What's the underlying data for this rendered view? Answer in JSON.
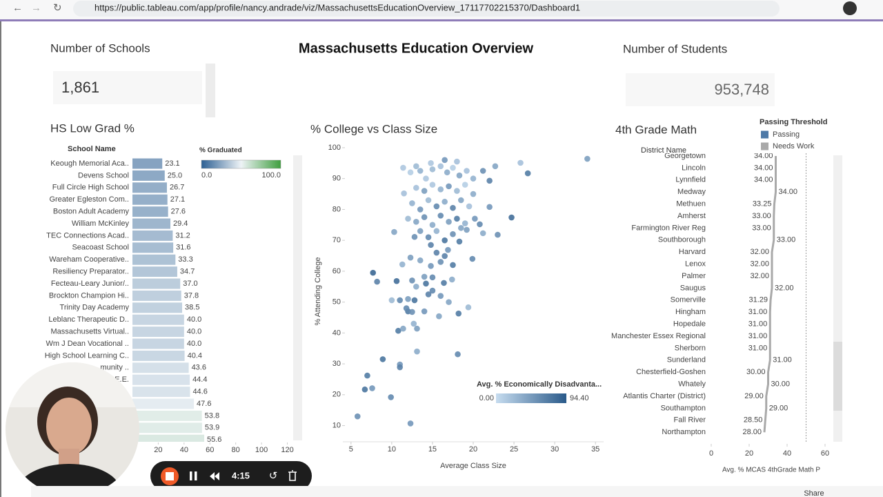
{
  "browser": {
    "url": "https://public.tableau.com/app/profile/nancy.andrade/viz/MassachusettsEducationOverview_17117702215370/Dashboard1"
  },
  "dashboard": {
    "title": "Massachusetts Education Overview",
    "kpis": [
      {
        "label": "Number of Schools",
        "value": "1,861"
      },
      {
        "label": "Number of Students",
        "value": "953,748"
      }
    ]
  },
  "chart_data": [
    {
      "type": "bar",
      "title": "HS Low Grad %",
      "category_header": "School Name",
      "categories": [
        "Keough Memorial Aca..",
        "Devens School",
        "Full Circle High School",
        "Greater Egleston Com..",
        "Boston Adult Academy",
        "William McKinley",
        "TEC Connections Acad..",
        "Seacoast School",
        "Wareham Cooperative..",
        "Resiliency Preparator..",
        "Fecteau-Leary Junior/..",
        "Brockton Champion Hi..",
        "Trinity Day Academy",
        "Leblanc Therapeutic D..",
        "Massachusetts Virtual..",
        "Wm J Dean Vocational ..",
        "High School Learning C..",
        "munity ..",
        "E.E.",
        null,
        null,
        null,
        null,
        null
      ],
      "values": [
        23.1,
        25.0,
        26.7,
        27.1,
        27.6,
        29.4,
        31.2,
        31.6,
        33.3,
        34.7,
        37.0,
        37.8,
        38.5,
        40.0,
        40.0,
        40.0,
        40.4,
        43.6,
        44.4,
        44.6,
        47.6,
        53.8,
        53.9,
        55.6
      ],
      "value_labels": [
        "23.1",
        "25.0",
        "26.7",
        "27.1",
        "27.6",
        "29.4",
        "31.2",
        "31.6",
        "33.3",
        "34.7",
        "37.0",
        "37.8",
        "38.5",
        "40.0",
        "40.0",
        "40.0",
        "40.4",
        "43.6",
        "44.4",
        "44.6",
        "47.6",
        "53.8",
        "53.9",
        "55.6"
      ],
      "xlim": [
        0,
        124
      ],
      "xticks": [
        0,
        20,
        40,
        60,
        80,
        100,
        120
      ],
      "color_legend": {
        "title": "% Graduated",
        "range": [
          {
            "value": 0,
            "label": "0.0"
          },
          {
            "value": 100,
            "label": "100.0"
          }
        ],
        "colors": [
          "#2c5f93",
          "#eef3f6",
          "#3f9e3f"
        ]
      }
    },
    {
      "type": "scatter",
      "title": "% College vs Class Size",
      "x_label": "Average Class Size",
      "y_label": "% Attending College",
      "x": [
        34.0,
        26.7,
        25.8,
        24.7,
        23.0,
        22.0,
        22.7,
        5.8,
        12.3,
        6.7,
        7.6,
        7.0,
        9.9,
        8.9,
        11.0,
        11.0,
        13.1,
        18.1,
        7.7,
        8.2,
        10.0,
        11.0,
        10.8,
        11.4,
        12.0,
        12.5,
        12.7,
        13.1,
        15.8,
        18.2,
        19.4,
        12.8,
        10.6,
        12.5,
        14.0,
        15.0,
        16.4,
        17.4,
        14.8,
        13.5,
        11.3,
        12.3,
        16.5,
        19.9,
        10.3,
        12.8,
        14.8,
        16.9,
        18.3,
        20.8,
        21.2,
        22.0,
        19.2,
        11.5,
        11.4,
        12.3,
        13.5,
        14.2,
        15.0,
        16.0,
        16.8,
        17.5,
        18.3,
        19.2,
        20.0,
        13.0,
        14.0,
        15.0,
        16.0,
        17.0,
        18.0,
        19.0,
        20.0,
        12.5,
        13.5,
        14.5,
        15.5,
        16.5,
        17.5,
        18.5,
        19.5,
        12.0,
        13.0,
        14.0,
        15.0,
        16.0,
        17.0,
        18.0,
        19.0,
        20.2,
        13.5,
        14.5,
        15.5,
        16.5,
        17.5,
        18.5,
        15.5,
        16.0,
        17.5,
        15.0,
        14.2,
        16.0,
        17.0,
        14.5,
        13.0,
        12.0,
        11.8,
        14.0,
        16.5,
        18.0,
        14.8,
        13.0,
        21.2
      ],
      "y": [
        96.4,
        91.7,
        95.1,
        77.4,
        71.8,
        89.3,
        94,
        13,
        10.7,
        21.7,
        22.1,
        26.2,
        19.2,
        31.5,
        29.8,
        28.9,
        34,
        33.1,
        59.5,
        56.6,
        50.6,
        50.6,
        40.7,
        41.4,
        47,
        46.8,
        43,
        41.4,
        45.4,
        46.3,
        48.3,
        50.6,
        56.8,
        57,
        58.2,
        53.7,
        56.2,
        57.3,
        61.7,
        63.5,
        62.2,
        64.4,
        64.9,
        64,
        72.7,
        71.1,
        68.5,
        66.9,
        69.6,
        75.2,
        72.3,
        80.8,
        73.4,
        85.2,
        93.5,
        92,
        92.5,
        90,
        93,
        94,
        92,
        93.5,
        91,
        92.5,
        90,
        87,
        86,
        88,
        86.5,
        87.5,
        86,
        88,
        85,
        82,
        80,
        83,
        81,
        82.5,
        80.5,
        83,
        81,
        77,
        76,
        77.5,
        75,
        78,
        76,
        77,
        75.5,
        77,
        73,
        71,
        73,
        70,
        72,
        74,
        66,
        63,
        62,
        58,
        56,
        52,
        50,
        52.5,
        55,
        51,
        48,
        47,
        96,
        95.5,
        95,
        94,
        92.5
      ],
      "color_values": [
        45,
        70,
        20,
        80,
        55,
        65,
        40,
        55,
        50,
        75,
        50,
        70,
        60,
        75,
        50,
        65,
        35,
        60,
        85,
        65,
        25,
        60,
        70,
        40,
        70,
        55,
        30,
        45,
        40,
        70,
        25,
        75,
        80,
        55,
        45,
        60,
        70,
        35,
        50,
        40,
        30,
        45,
        65,
        60,
        40,
        55,
        65,
        50,
        70,
        60,
        35,
        50,
        45,
        20,
        15,
        10,
        30,
        15,
        25,
        20,
        35,
        10,
        40,
        20,
        30,
        20,
        45,
        15,
        30,
        50,
        25,
        10,
        35,
        30,
        50,
        25,
        60,
        35,
        65,
        40,
        20,
        25,
        40,
        55,
        35,
        60,
        45,
        70,
        30,
        50,
        45,
        60,
        30,
        75,
        55,
        40,
        65,
        55,
        70,
        60,
        75,
        50,
        40,
        65,
        35,
        45,
        60,
        50,
        50,
        20,
        15,
        25,
        55
      ],
      "xlim": [
        4,
        36
      ],
      "ylim": [
        7,
        102
      ],
      "xticks": [
        5,
        10,
        15,
        20,
        25,
        30,
        35
      ],
      "yticks": [
        10,
        20,
        30,
        40,
        50,
        60,
        70,
        80,
        90,
        100
      ],
      "color_legend": {
        "title": "Avg. % Economically Disadvanta...",
        "range": [
          {
            "value": 0,
            "label": "0.00"
          },
          {
            "value": 94.4,
            "label": "94.40"
          }
        ],
        "colors": [
          "#c6dcef",
          "#2a5a8a"
        ]
      }
    },
    {
      "type": "line",
      "title": "4th Grade Math",
      "category_header": "District Name",
      "x_label": "Avg. % MCAS 4thGrade Math P",
      "categories": [
        "Georgetown",
        "Lincoln",
        "Lynnfield",
        "Medway",
        "Methuen",
        "Amherst",
        "Farmington River Reg",
        "Southborough",
        "Harvard",
        "Lenox",
        "Palmer",
        "Saugus",
        "Somerville",
        "Hingham",
        "Hopedale",
        "Manchester Essex Regional",
        "Sherborn",
        "Sunderland",
        "Chesterfield-Goshen",
        "Whately",
        "Atlantis Charter (District)",
        "Southampton",
        "Fall River",
        "Northampton"
      ],
      "values": [
        34,
        34,
        34,
        34,
        33.25,
        33,
        33,
        33,
        32,
        32,
        32,
        32,
        31.29,
        31,
        31,
        31,
        31,
        31,
        30,
        30,
        29,
        29,
        28.5,
        28
      ],
      "value_labels": [
        "34.00",
        "34.00",
        "34.00",
        "34.00",
        "33.25",
        "33.00",
        "33.00",
        "33.00",
        "32.00",
        "32.00",
        "32.00",
        "32.00",
        "31.29",
        "31.00",
        "31.00",
        "31.00",
        "31.00",
        "31.00",
        "30.00",
        "30.00",
        "29.00",
        "29.00",
        "28.50",
        "28.00"
      ],
      "xlim": [
        0,
        68
      ],
      "xticks": [
        0,
        20,
        40,
        60
      ],
      "reference_line": 50,
      "legend": {
        "title": "Passing Threshold",
        "items": [
          {
            "name": "Passing",
            "color": "#4e79a7"
          },
          {
            "name": "Needs Work",
            "color": "#a9a9a9"
          }
        ]
      }
    }
  ],
  "recorder": {
    "time": "4:15"
  },
  "toolbar": {
    "share": "Share"
  }
}
